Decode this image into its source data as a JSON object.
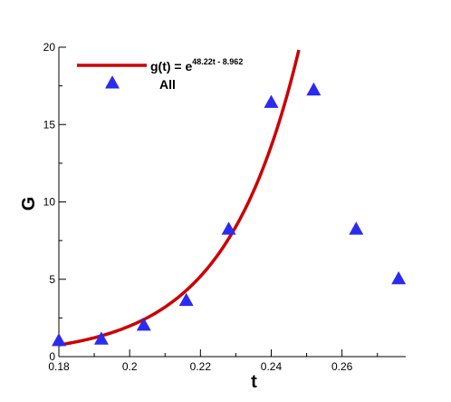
{
  "chart_data": {
    "type": "scatter",
    "xlabel": "t",
    "ylabel": "G",
    "xlim": [
      0.18,
      0.278
    ],
    "ylim": [
      0,
      20
    ],
    "x_ticks": [
      0.18,
      0.2,
      0.22,
      0.24,
      0.26
    ],
    "x_tick_labels": [
      "0.18",
      "0.2",
      "0.22",
      "0.24",
      "0.26"
    ],
    "y_ticks": [
      0,
      5,
      10,
      15,
      20
    ],
    "y_tick_labels": [
      "0",
      "5",
      "10",
      "15",
      "20"
    ],
    "grid": false,
    "legend_position": "top-left",
    "series": [
      {
        "name": "All",
        "kind": "scatter",
        "marker": "triangle",
        "color": "#2b2bf0",
        "x": [
          0.18,
          0.192,
          0.204,
          0.216,
          0.228,
          0.24,
          0.252,
          0.264,
          0.276
        ],
        "y": [
          1.0,
          1.1,
          2.0,
          3.6,
          8.2,
          16.4,
          17.2,
          8.2,
          5.0
        ]
      },
      {
        "name_text": "g(t) = e",
        "name_exponent": "48.22t - 8.962",
        "kind": "line",
        "color": "#cc0000",
        "formula": {
          "a": 48.22,
          "b": -8.962
        },
        "x_range": [
          0.18,
          0.2478
        ]
      }
    ]
  }
}
